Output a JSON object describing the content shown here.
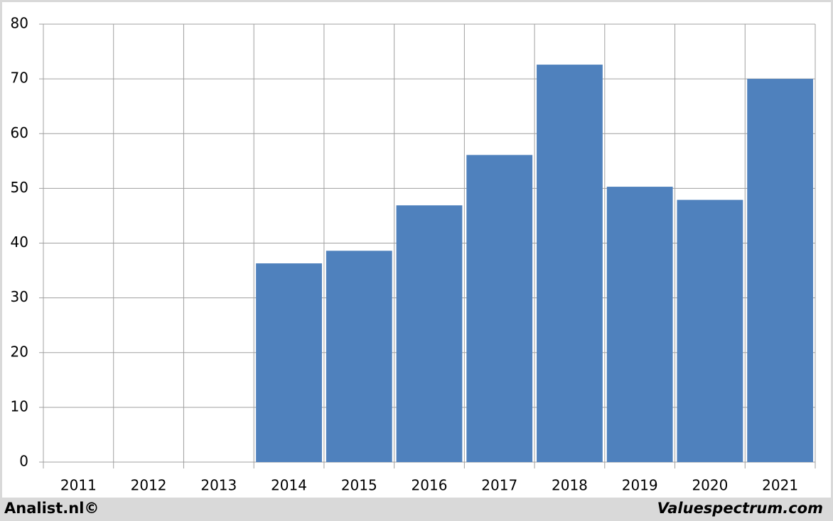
{
  "chart_data": {
    "type": "bar",
    "categories": [
      "2011",
      "2012",
      "2013",
      "2014",
      "2015",
      "2016",
      "2017",
      "2018",
      "2019",
      "2020",
      "2021"
    ],
    "values": [
      null,
      null,
      null,
      36.3,
      38.6,
      46.9,
      56.1,
      72.6,
      50.3,
      47.9,
      70.0
    ],
    "color": "#4f81bd",
    "ylim": [
      0,
      80
    ],
    "yticks": [
      0,
      10,
      20,
      30,
      40,
      50,
      60,
      70,
      80
    ],
    "grid": true,
    "annotations": [
      "Analist.nl©",
      "Valuespectrum.com"
    ]
  }
}
